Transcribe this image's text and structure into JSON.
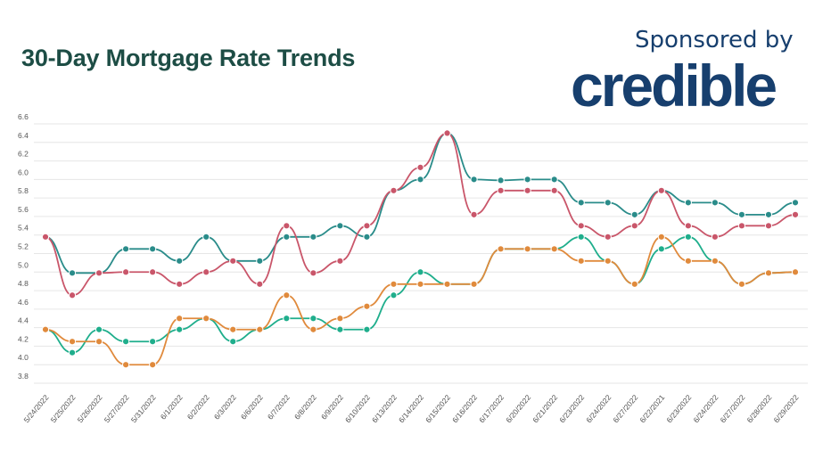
{
  "header": {
    "title": "30-Day Mortgage Rate Trends",
    "sponsor_label": "Sponsored by",
    "sponsor_logo": "credible"
  },
  "colors": {
    "title": "#1d4d45",
    "sponsor": "#173f6e",
    "grid": "#e6e6e6"
  },
  "chart_data": {
    "type": "line",
    "title": "30-Day Mortgage Rate Trends",
    "xlabel": "",
    "ylabel": "",
    "ylim": [
      3.8,
      6.6
    ],
    "yticks": [
      "3.8",
      "4.0",
      "4.2",
      "4.4",
      "4.6",
      "4.8",
      "5.0",
      "5.2",
      "5.4",
      "5.6",
      "5.8",
      "6.0",
      "6.2",
      "6.4",
      "6.6"
    ],
    "grid": true,
    "legend": "none",
    "categories": [
      "5/24/2022",
      "5/25/2022",
      "5/26/2022",
      "5/27/2022",
      "5/31/2022",
      "6/1/2022",
      "6/2/2022",
      "6/3/2022",
      "6/6/2022",
      "6/7/2022",
      "6/8/2022",
      "6/9/2022",
      "6/10/2022",
      "6/13/2022",
      "6/14/2022",
      "6/15/2022",
      "6/16/2022",
      "6/17/2022",
      "6/20/2022",
      "6/21/2022",
      "6/23/2022",
      "6/24/2022",
      "6/27/2022",
      "6/22/2021",
      "6/23/2022",
      "6/24/2022",
      "6/27/2022",
      "6/28/2022",
      "6/29/2022"
    ],
    "series": [
      {
        "color": "#2a8c8a",
        "values": [
          5.38,
          4.99,
          4.99,
          5.25,
          5.25,
          5.12,
          5.38,
          5.12,
          5.12,
          5.38,
          5.38,
          5.5,
          5.38,
          5.88,
          6.0,
          6.5,
          6.0,
          5.99,
          6.0,
          6.0,
          5.75,
          5.75,
          5.62,
          5.88,
          5.75,
          5.75,
          5.62,
          5.62,
          5.75
        ]
      },
      {
        "color": "#c9566a",
        "values": [
          5.38,
          4.75,
          4.99,
          5.0,
          5.0,
          4.87,
          5.0,
          5.12,
          4.87,
          5.5,
          4.99,
          5.12,
          5.5,
          5.88,
          6.13,
          6.5,
          5.62,
          5.88,
          5.88,
          5.88,
          5.5,
          5.38,
          5.5,
          5.88,
          5.5,
          5.38,
          5.5,
          5.5,
          5.62
        ]
      },
      {
        "color": "#1fae8c",
        "values": [
          4.38,
          4.13,
          4.38,
          4.25,
          4.25,
          4.38,
          4.5,
          4.25,
          4.38,
          4.5,
          4.5,
          4.38,
          4.38,
          4.75,
          5.0,
          4.87,
          4.87,
          5.25,
          5.25,
          5.25,
          5.38,
          5.12,
          4.87,
          5.25,
          5.38,
          5.12,
          4.87,
          4.99,
          5.0
        ]
      },
      {
        "color": "#e08a3c",
        "values": [
          4.38,
          4.25,
          4.25,
          4.0,
          4.0,
          4.5,
          4.5,
          4.38,
          4.38,
          4.75,
          4.38,
          4.5,
          4.63,
          4.87,
          4.87,
          4.87,
          4.87,
          5.25,
          5.25,
          5.25,
          5.12,
          5.12,
          4.87,
          5.38,
          5.12,
          5.12,
          4.87,
          4.99,
          5.0
        ]
      }
    ]
  }
}
